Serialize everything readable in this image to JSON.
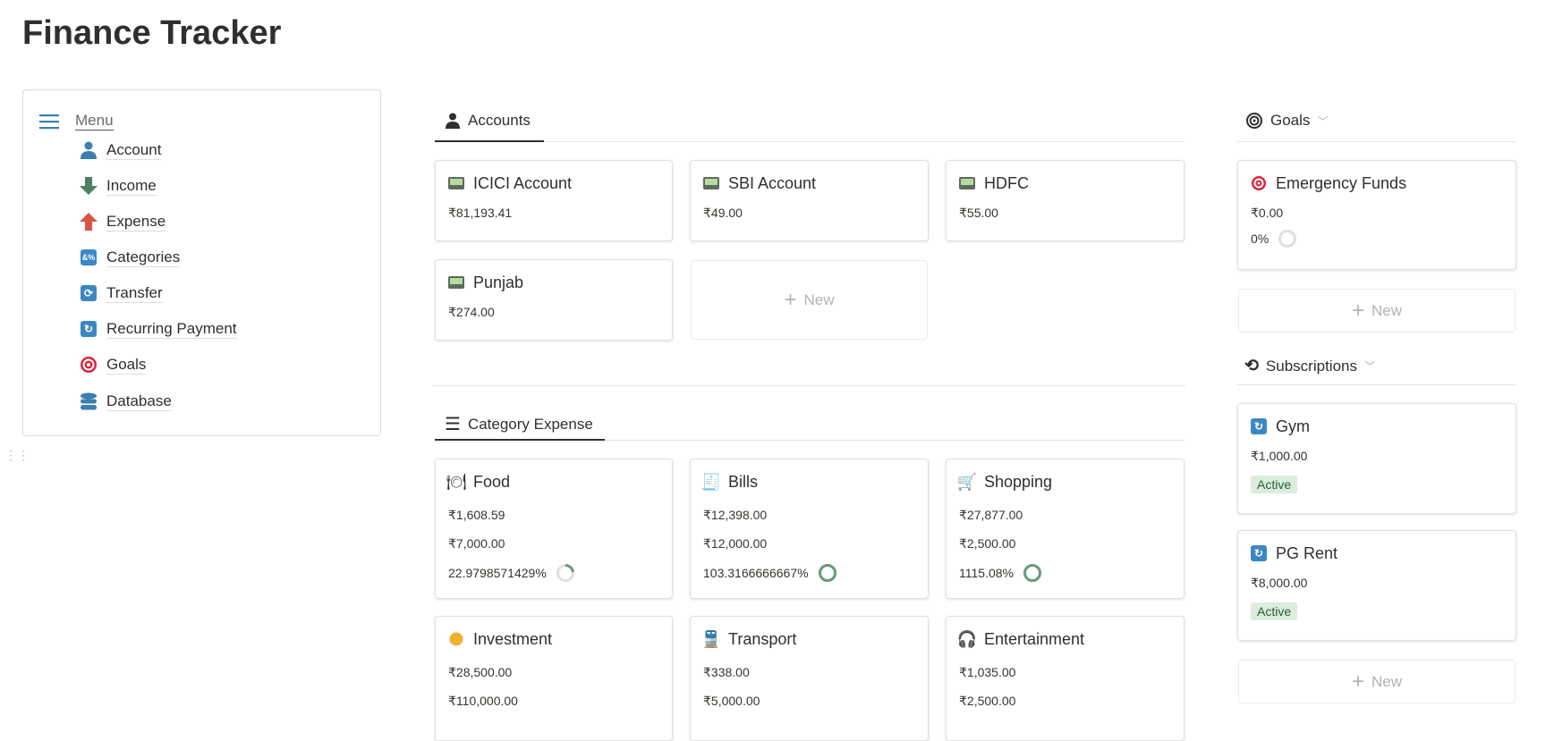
{
  "page_title": "Finance Tracker",
  "menu": {
    "label": "Menu",
    "items": [
      {
        "label": "Account",
        "icon": "person-icon"
      },
      {
        "label": "Income",
        "icon": "arrow-down-icon"
      },
      {
        "label": "Expense",
        "icon": "arrow-up-icon"
      },
      {
        "label": "Categories",
        "icon": "symbols-icon"
      },
      {
        "label": "Transfer",
        "icon": "repeat-icon"
      },
      {
        "label": "Recurring Payment",
        "icon": "repeat-one-icon"
      },
      {
        "label": "Goals",
        "icon": "target-icon"
      },
      {
        "label": "Database",
        "icon": "database-icon"
      }
    ]
  },
  "accounts": {
    "tab_label": "Accounts",
    "cards": [
      {
        "name": "ICICI Account",
        "balance": "₹81,193.41"
      },
      {
        "name": "SBI Account",
        "balance": "₹49.00"
      },
      {
        "name": "HDFC",
        "balance": "₹55.00"
      },
      {
        "name": "Punjab",
        "balance": "₹274.00"
      }
    ],
    "new_label": "New"
  },
  "category_expense": {
    "tab_label": "Category Expense",
    "cards": [
      {
        "name": "Food",
        "icon": "fork-knife-plate-icon",
        "spent": "₹1,608.59",
        "budget": "₹7,000.00",
        "percent_text": "22.9798571429%",
        "progress": 0.23
      },
      {
        "name": "Bills",
        "icon": "receipt-icon",
        "spent": "₹12,398.00",
        "budget": "₹12,000.00",
        "percent_text": "103.3166666667%",
        "progress": 1.0
      },
      {
        "name": "Shopping",
        "icon": "shopping-cart-icon",
        "spent": "₹27,877.00",
        "budget": "₹2,500.00",
        "percent_text": "1115.08%",
        "progress": 1.0
      },
      {
        "name": "Investment",
        "icon": "coin-icon",
        "spent": "₹28,500.00",
        "budget": "₹110,000.00"
      },
      {
        "name": "Transport",
        "icon": "train-icon",
        "spent": "₹338.00",
        "budget": "₹5,000.00"
      },
      {
        "name": "Entertainment",
        "icon": "headphones-icon",
        "spent": "₹1,035.00",
        "budget": "₹2,500.00"
      }
    ]
  },
  "goals": {
    "label": "Goals",
    "cards": [
      {
        "name": "Emergency Funds",
        "amount": "₹0.00",
        "percent_text": "0%",
        "progress": 0
      }
    ],
    "new_label": "New"
  },
  "subscriptions": {
    "label": "Subscriptions",
    "cards": [
      {
        "name": "Gym",
        "amount": "₹1,000.00",
        "status": "Active"
      },
      {
        "name": "PG Rent",
        "amount": "₹8,000.00",
        "status": "Active"
      }
    ],
    "new_label": "New"
  },
  "colors": {
    "progress_green": "#6a9a78",
    "track_gray": "#e0e0e0",
    "badge_bg": "#dbeddb",
    "icon_blue": "#3b87c4"
  }
}
